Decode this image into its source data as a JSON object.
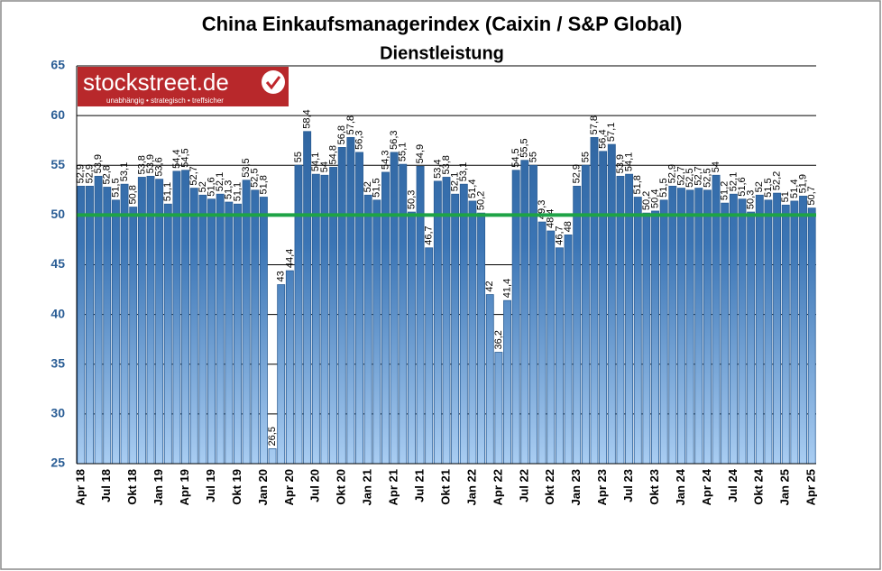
{
  "chart_data": {
    "type": "bar",
    "title": "China Einkaufsmanagerindex (Caixin / S&P Global)",
    "subtitle": "Dienstleistung",
    "logo": {
      "name": "stockstreet.de",
      "tagline": "unabhängig • strategisch • treffsicher"
    },
    "categories": [
      "Apr 18",
      null,
      null,
      "Jul 18",
      null,
      null,
      "Okt 18",
      null,
      null,
      "Jan 19",
      null,
      null,
      "Apr 19",
      null,
      null,
      "Jul 19",
      null,
      null,
      "Okt 19",
      null,
      null,
      "Jan 20",
      null,
      null,
      "Apr 20",
      null,
      null,
      "Jul 20",
      null,
      null,
      "Okt 20",
      null,
      null,
      "Jan 21",
      null,
      null,
      "Apr 21",
      null,
      null,
      "Jul 21",
      null,
      null,
      "Okt 21",
      null,
      null,
      "Jan 22",
      null,
      null,
      "Apr 22",
      null,
      null,
      "Jul 22",
      null,
      null,
      "Okt 22",
      null,
      null,
      "Jan 23",
      null,
      null,
      "Apr 23",
      null,
      null,
      "Jul 23",
      null,
      null,
      "Okt 23",
      null,
      null,
      "Jan 24",
      null,
      null,
      "Apr 24",
      null,
      null,
      "Jul 24",
      null,
      null,
      "Okt 24",
      null,
      null,
      "Jan 25",
      null,
      null,
      "Apr 25"
    ],
    "values": [
      52.9,
      52.9,
      53.9,
      52.8,
      51.5,
      53.1,
      50.8,
      53.8,
      53.9,
      53.6,
      51.1,
      54.4,
      54.5,
      52.7,
      52,
      51.6,
      52.1,
      51.3,
      51.1,
      53.5,
      52.5,
      51.8,
      26.5,
      43,
      44.4,
      55,
      58.4,
      54.1,
      54,
      54.8,
      56.8,
      57.8,
      56.3,
      52,
      51.5,
      54.3,
      56.3,
      55.1,
      50.3,
      54.9,
      46.7,
      53.4,
      53.8,
      52.1,
      53.1,
      51.4,
      50.2,
      42,
      36.2,
      41.4,
      54.5,
      55.5,
      55,
      49.3,
      48.4,
      46.7,
      48,
      52.9,
      55,
      57.8,
      56.4,
      57.1,
      53.9,
      54.1,
      51.8,
      50.2,
      50.4,
      51.5,
      52.9,
      52.7,
      52.5,
      52.7,
      52.5,
      54,
      51.2,
      52.1,
      51.6,
      50.3,
      52,
      51.5,
      52.2,
      51,
      51.4,
      51.9,
      50.7
    ],
    "value_labels": [
      "52,9",
      "52,9",
      "53,9",
      "52,8",
      "51,5",
      "53,1",
      "50,8",
      "53,8",
      "53,9",
      "53,6",
      "51,1",
      "54,4",
      "54,5",
      "52,7",
      "52",
      "51,6",
      "52,1",
      "51,3",
      "51,1",
      "53,5",
      "52,5",
      "51,8",
      "26,5",
      "43",
      "44,4",
      "55",
      "58,4",
      "54,1",
      "54",
      "54,8",
      "56,8",
      "57,8",
      "56,3",
      "52",
      "51,5",
      "54,3",
      "56,3",
      "55,1",
      "50,3",
      "54,9",
      "46,7",
      "53,4",
      "53,8",
      "52,1",
      "53,1",
      "51,4",
      "50,2",
      "42",
      "36,2",
      "41,4",
      "54,5",
      "55,5",
      "55",
      "49,3",
      "48,4",
      "46,7",
      "48",
      "52,9",
      "55",
      "57,8",
      "56,4",
      "57,1",
      "53,9",
      "54,1",
      "51,8",
      "50,2",
      "50,4",
      "51,5",
      "52,9",
      "52,7",
      "52,5",
      "52,7",
      "52,5",
      "54",
      "51,2",
      "52,1",
      "51,6",
      "50,3",
      "52",
      "51,5",
      "52,2",
      "51",
      "51,4",
      "51,9",
      "50,7"
    ],
    "color": "#2a5d95",
    "reference_line": 50,
    "reference_color": "#1ea346",
    "ylim": [
      25,
      65
    ],
    "yticks": [
      25,
      30,
      35,
      40,
      45,
      50,
      55,
      60,
      65
    ],
    "grid": true
  }
}
